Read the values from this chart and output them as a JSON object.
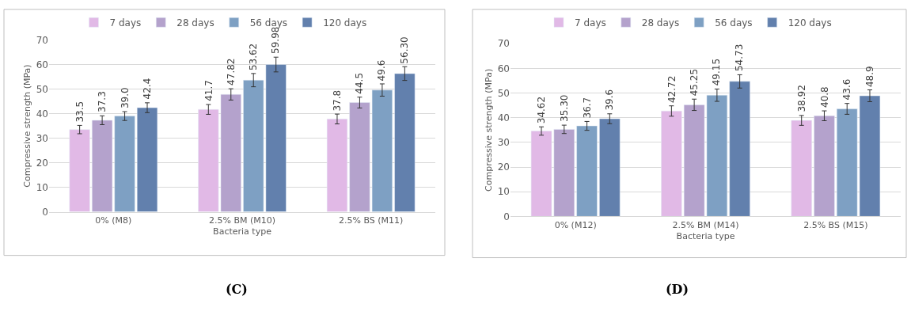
{
  "chart_data": [
    {
      "type": "bar",
      "xlabel": "Bacteria type",
      "ylabel": "Compressive strength (MPa)",
      "categories": [
        "0% (M8)",
        "2.5% BM (M10)",
        "2.5% BS (M11)"
      ],
      "ylim": [
        0,
        70
      ],
      "yticks": [
        0,
        10,
        20,
        30,
        40,
        50,
        60,
        70
      ],
      "grid": "y",
      "legend": "top",
      "annotations": [
        "(C)"
      ],
      "series": [
        {
          "name": "7 days",
          "color": "#e1b9e6",
          "values": [
            33.5,
            41.7,
            37.8
          ],
          "errors": [
            1.7,
            2,
            2
          ],
          "value_labels": [
            "33.5",
            "41.7",
            "37.8"
          ]
        },
        {
          "name": "28 days",
          "color": "#b4a2cc",
          "values": [
            37.3,
            47.82,
            44.5
          ],
          "errors": [
            1.8,
            2.3,
            2.2
          ],
          "value_labels": [
            "37.3",
            "47.82",
            "44.5"
          ]
        },
        {
          "name": "56 days",
          "color": "#7ea0c3",
          "values": [
            39.0,
            53.62,
            49.6
          ],
          "errors": [
            1.8,
            2.7,
            2.5
          ],
          "value_labels": [
            "39.0",
            "53.62",
            "49.6"
          ]
        },
        {
          "name": "120 days",
          "color": "#6280ad",
          "values": [
            42.4,
            59.98,
            56.3
          ],
          "errors": [
            2,
            3,
            2.8
          ],
          "value_labels": [
            "42.4",
            "59.98",
            "56.30"
          ]
        }
      ]
    },
    {
      "type": "bar",
      "xlabel": "Bacteria type",
      "ylabel": "Compressive strength (MPa)",
      "categories": [
        "0% (M12)",
        "2.5% BM (M14)",
        "2.5% BS (M15)"
      ],
      "ylim": [
        0,
        70
      ],
      "yticks": [
        0,
        10,
        20,
        30,
        40,
        50,
        60,
        70
      ],
      "grid": "y",
      "legend": "top",
      "annotations": [
        "(D)"
      ],
      "series": [
        {
          "name": "7 days",
          "color": "#e1b9e6",
          "values": [
            34.62,
            42.72,
            38.92
          ],
          "errors": [
            1.7,
            2.1,
            2
          ],
          "value_labels": [
            "34.62",
            "42.72",
            "38.92"
          ]
        },
        {
          "name": "28 days",
          "color": "#b4a2cc",
          "values": [
            35.3,
            45.25,
            40.8
          ],
          "errors": [
            1.7,
            2.3,
            2
          ],
          "value_labels": [
            "35.30",
            "45.25",
            "40.8"
          ]
        },
        {
          "name": "56 days",
          "color": "#7ea0c3",
          "values": [
            36.7,
            49.15,
            43.6
          ],
          "errors": [
            1.8,
            2.5,
            2.2
          ],
          "value_labels": [
            "36.7",
            "49.15",
            "43.6"
          ]
        },
        {
          "name": "120 days",
          "color": "#6280ad",
          "values": [
            39.6,
            54.73,
            48.9
          ],
          "errors": [
            2,
            2.7,
            2.4
          ],
          "value_labels": [
            "39.6",
            "54.73",
            "48.9"
          ]
        }
      ]
    }
  ]
}
